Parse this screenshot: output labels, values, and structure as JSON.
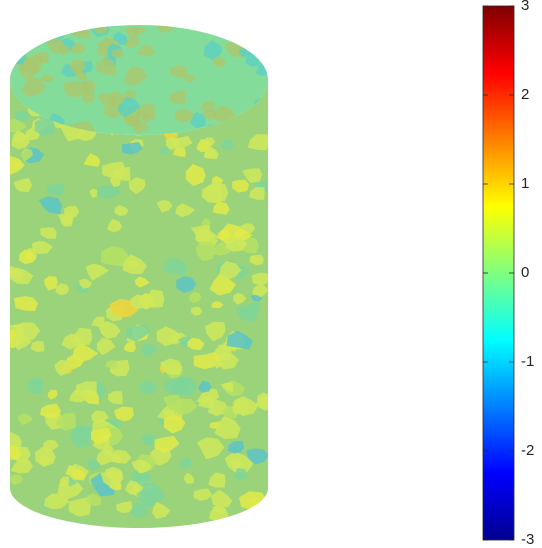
{
  "chart_data": {
    "type": "surface",
    "colormap": "jet",
    "clim": [
      -3,
      3
    ],
    "cticks": [
      -3,
      -2,
      -1,
      0,
      1,
      2,
      3
    ]
  }
}
